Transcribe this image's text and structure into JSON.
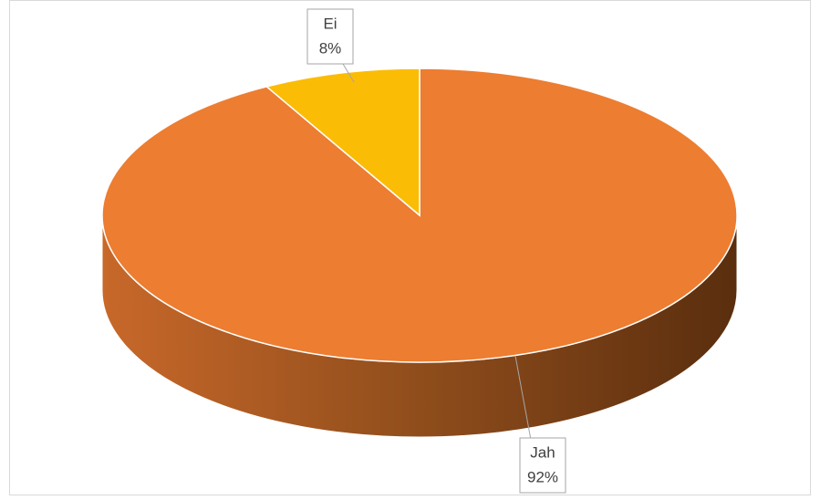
{
  "chart_data": {
    "type": "pie3d",
    "categories": [
      "Jah",
      "Ei"
    ],
    "values": [
      92,
      8
    ],
    "value_labels": [
      "92%",
      "8%"
    ],
    "colors": [
      "#ED7D31",
      "#FBBC05"
    ]
  }
}
